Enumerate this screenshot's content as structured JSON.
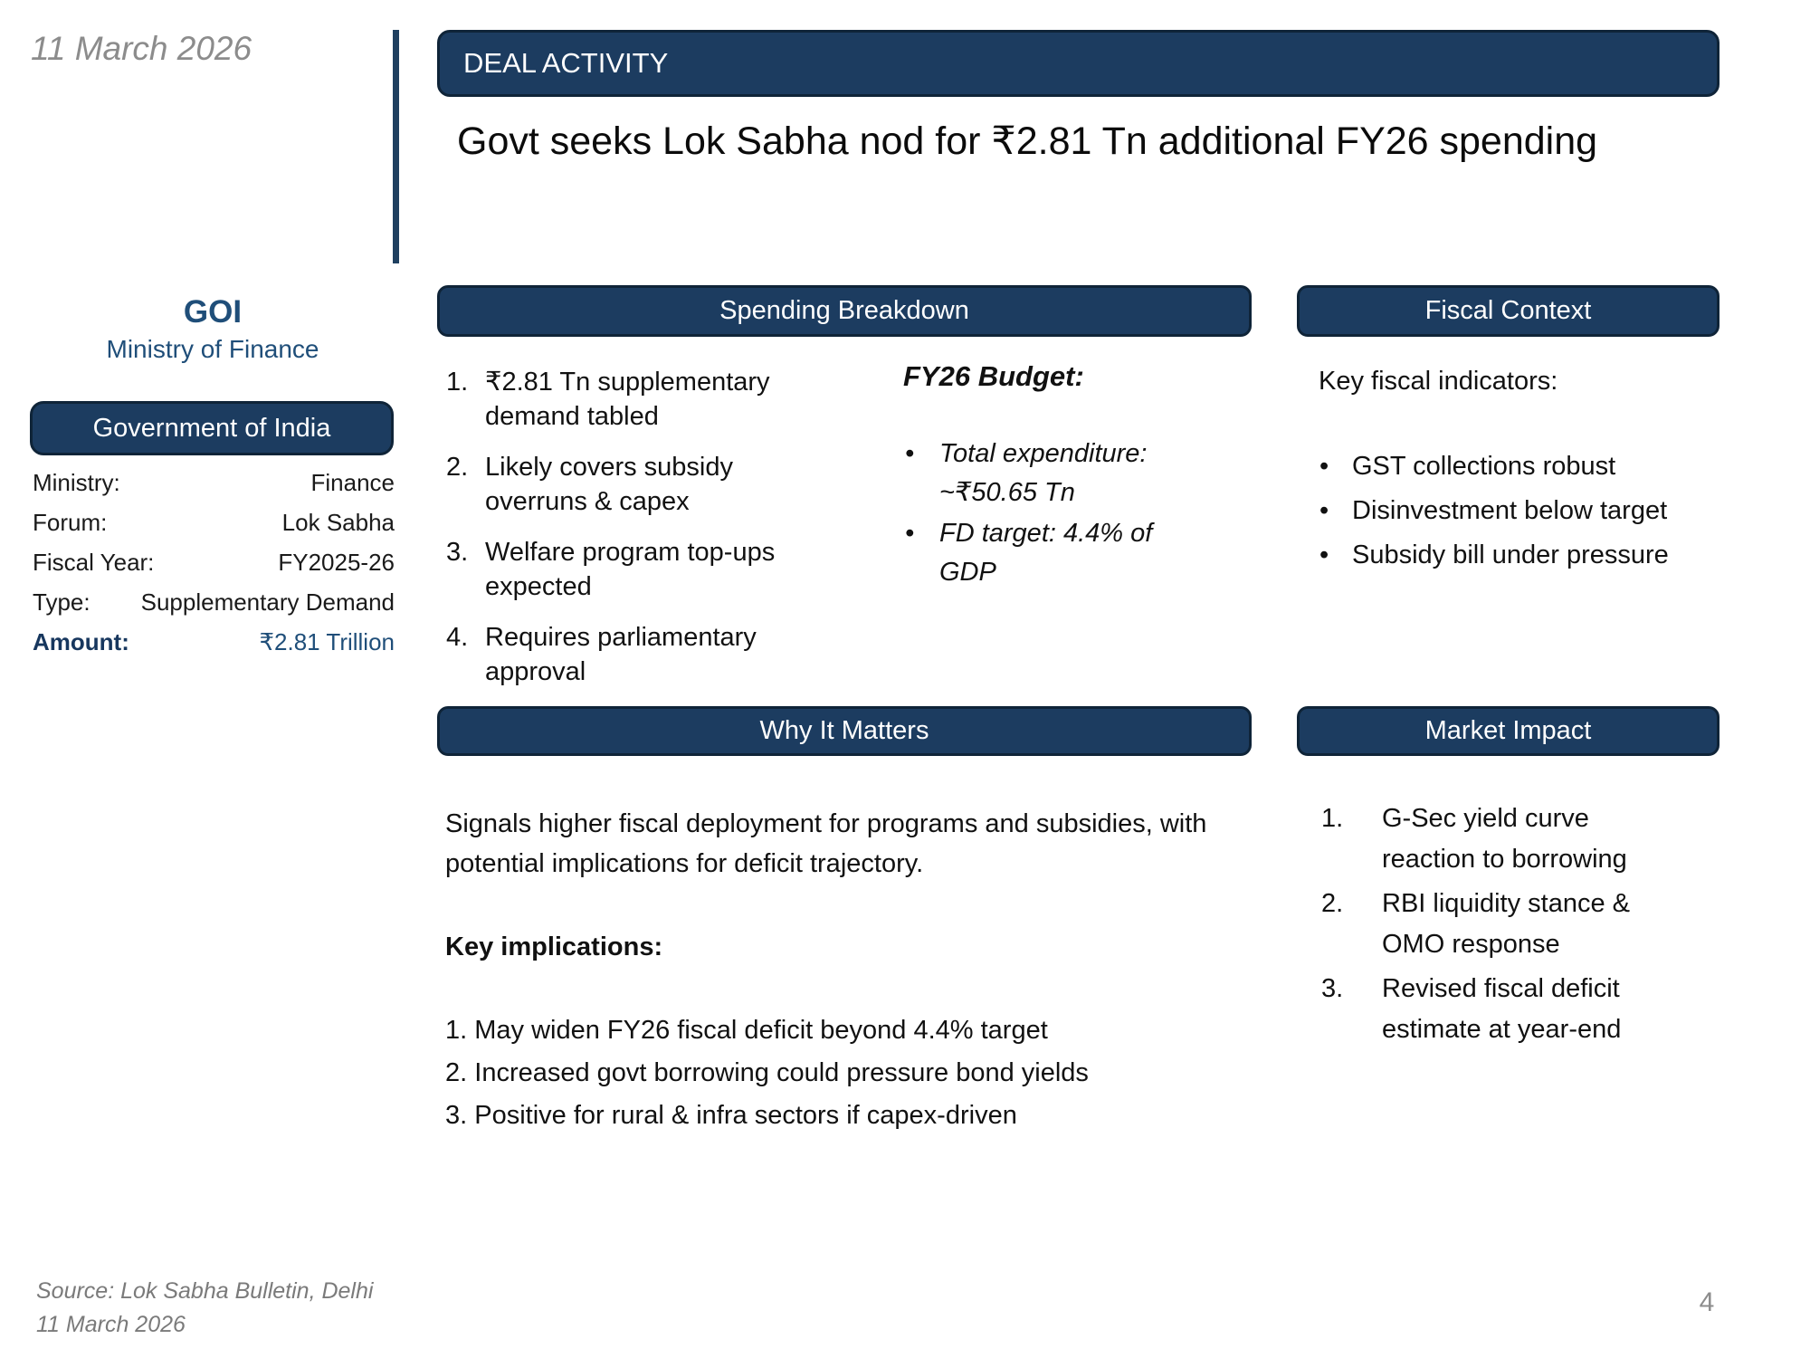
{
  "slide": {
    "date": "11 March 2026",
    "page_number": "4",
    "source_line1": "Source: Lok Sabha Bulletin, Delhi",
    "source_line2": "11 March 2026"
  },
  "header": {
    "tag": "DEAL ACTIVITY",
    "title": "Govt seeks Lok Sabha nod for ₹2.81 Tn additional FY26 spending"
  },
  "entity": {
    "abbr": "GOI",
    "name": "Ministry of Finance",
    "card_title": "Government of India",
    "fields": [
      {
        "label": "Ministry:",
        "value": "Finance"
      },
      {
        "label": "Forum:",
        "value": "Lok Sabha"
      },
      {
        "label": "Fiscal Year:",
        "value": "FY2025-26"
      },
      {
        "label": "Type:",
        "value": "Supplementary Demand"
      },
      {
        "label": "Amount:",
        "value": "₹2.81 Trillion"
      }
    ]
  },
  "spending_breakdown": {
    "title": "Spending Breakdown",
    "items": [
      "₹2.81 Tn supplementary demand tabled",
      "Likely covers subsidy overruns & capex",
      "Welfare program top-ups expected",
      "Requires parliamentary approval"
    ],
    "budget": {
      "heading": "FY26 Budget:",
      "bullets": [
        "Total expenditure: ~₹50.65 Tn",
        "FD target: 4.4% of GDP"
      ]
    }
  },
  "fiscal_context": {
    "title": "Fiscal Context",
    "heading": "Key fiscal indicators:",
    "bullets": [
      "GST collections robust",
      "Disinvestment below target",
      "Subsidy bill under pressure"
    ]
  },
  "why_it_matters": {
    "title": "Why It Matters",
    "paragraph": "Signals higher fiscal deployment for programs and subsidies, with potential implications for deficit trajectory.",
    "subheading": "Key implications:",
    "items": [
      "May widen FY26 fiscal deficit beyond 4.4% target",
      "Increased govt borrowing could pressure bond yields",
      "Positive for rural & infra sectors if capex-driven"
    ]
  },
  "market_impact": {
    "title": "Market Impact",
    "items": [
      "G-Sec yield curve reaction to borrowing",
      "RBI liquidity stance & OMO response",
      "Revised fiscal deficit estimate at year-end"
    ]
  },
  "colors": {
    "navy_fill": "#1c3c60",
    "navy_border": "#0f2438",
    "navy_text": "#1f4e79",
    "gray_text": "#8c8c8c"
  }
}
